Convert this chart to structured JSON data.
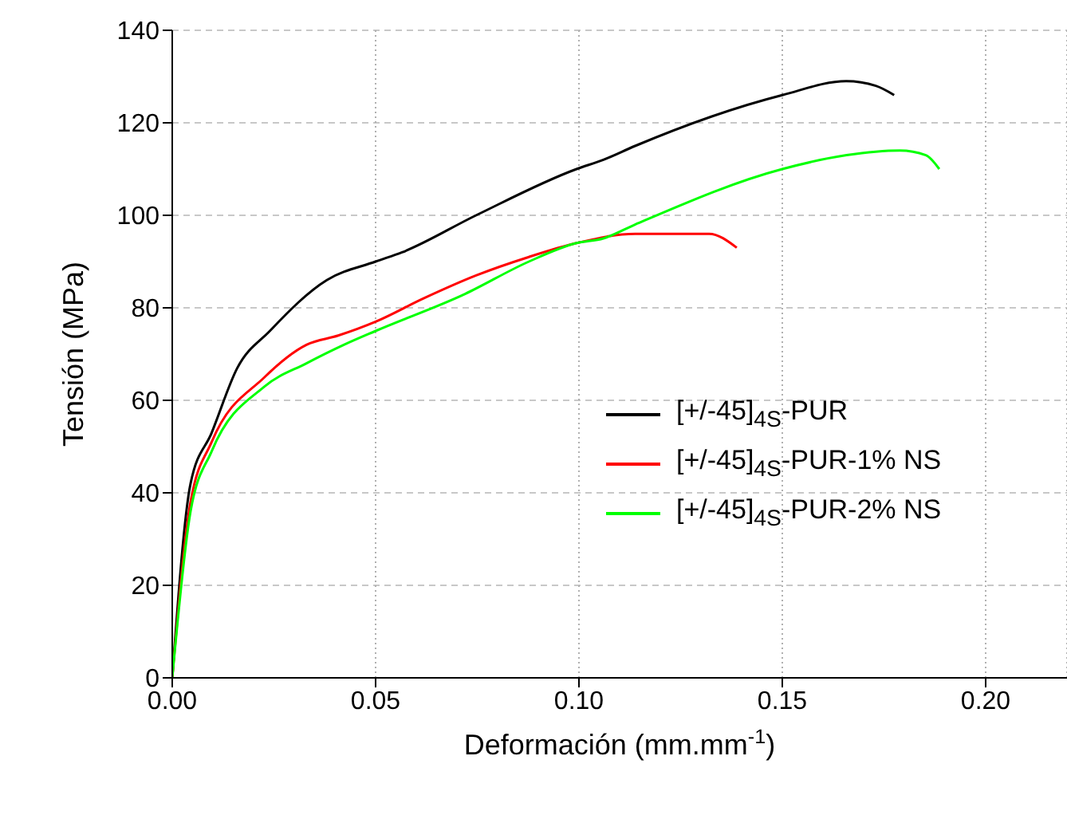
{
  "chart_data": {
    "type": "line",
    "xlabel": "Deformación (mm.mm$^{-1}$)",
    "ylabel": "Tensión (MPa)",
    "xlim": [
      0,
      0.22
    ],
    "xticks": [
      {
        "value": 0,
        "label": "0.00"
      },
      {
        "value": 0.05,
        "label": "0.05"
      },
      {
        "value": 0.1,
        "label": "0.10"
      },
      {
        "value": 0.15,
        "label": "0.15"
      },
      {
        "value": 0.2,
        "label": "0.20"
      }
    ],
    "ylim": [
      0,
      140
    ],
    "yticks": [
      0,
      20,
      40,
      60,
      80,
      100,
      120,
      140
    ],
    "grid": true,
    "legend": "right",
    "line_style": "solid",
    "series": [
      {
        "name": "[+/-45]$_{4S}$-PUR",
        "color": "#000000",
        "x": [
          0,
          0.0045,
          0.0097,
          0.016,
          0.024,
          0.038,
          0.05,
          0.0565,
          0.0747,
          0.0994,
          0.106,
          0.1138,
          0.15,
          0.1657,
          0.173,
          0.1775
        ],
        "values": [
          0,
          42,
          53,
          67,
          75,
          86,
          90,
          92,
          100,
          110,
          112,
          115,
          126,
          129,
          128,
          126
        ]
      },
      {
        "name": "[+/-45]$_{4S}$-PUR-1% NS",
        "color": "#ff0000",
        "x": [
          0,
          0.0045,
          0.0097,
          0.0227,
          0.033,
          0.0408,
          0.05,
          0.0617,
          0.0747,
          0.0877,
          0.0994,
          0.1138,
          0.1228,
          0.132,
          0.1388
        ],
        "values": [
          0,
          38,
          51,
          65,
          72,
          74,
          77,
          82,
          87,
          91,
          94,
          96,
          96,
          96,
          93
        ]
      },
      {
        "name": "[+/-45]$_{4S}$-PUR-2% NS",
        "color": "#00ff00",
        "x": [
          0,
          0.0045,
          0.0097,
          0.0227,
          0.033,
          0.0422,
          0.05,
          0.072,
          0.0877,
          0.0994,
          0.106,
          0.1138,
          0.15,
          0.1658,
          0.1789,
          0.1853,
          0.1886
        ],
        "values": [
          0,
          36,
          49,
          63,
          68,
          72,
          75,
          83,
          90,
          94,
          95,
          98,
          110,
          113,
          114,
          113,
          110
        ]
      }
    ]
  }
}
